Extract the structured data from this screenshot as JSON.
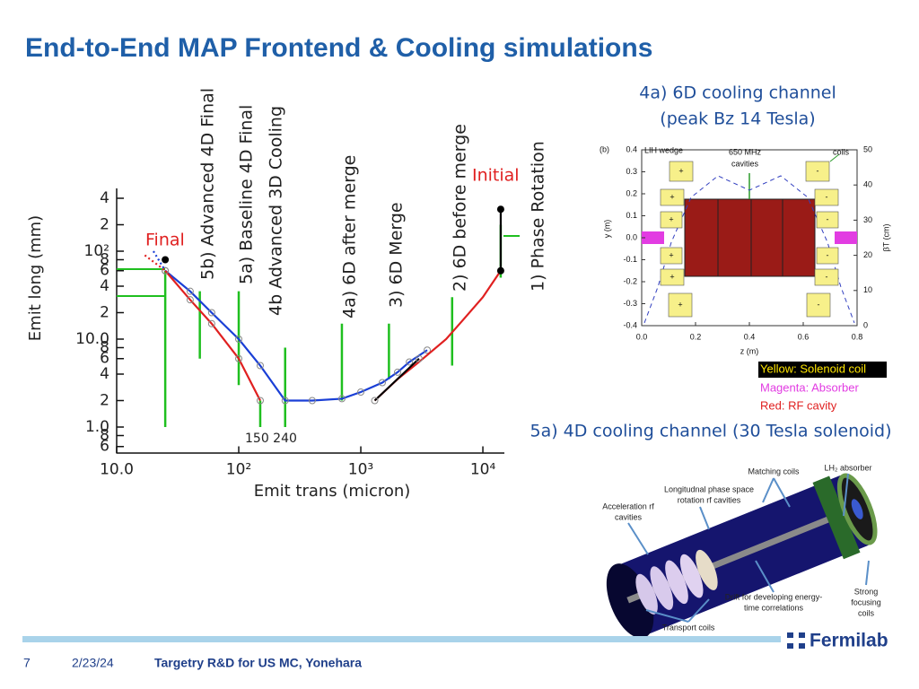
{
  "title": "End-to-End MAP Frontend & Cooling simulations",
  "chart_data": {
    "type": "line",
    "xlabel": "Emit trans   (micron)",
    "ylabel": "Emit long (mm)",
    "log_x": true,
    "log_y": true,
    "xlim": [
      10,
      15000
    ],
    "xticks": [
      {
        "value": 10,
        "label": "10.0"
      },
      {
        "value": 100,
        "label": "10²"
      },
      {
        "value": 1000,
        "label": "10³"
      },
      {
        "value": 10000,
        "label": "10⁴"
      }
    ],
    "ylim": [
      0.5,
      500
    ],
    "yticks": [
      {
        "value": 400,
        "label": "4"
      },
      {
        "value": 200,
        "label": "2"
      },
      {
        "value": 100,
        "label": "10²"
      },
      {
        "value": 80,
        "label": "8"
      },
      {
        "value": 60,
        "label": "6"
      },
      {
        "value": 40,
        "label": "4"
      },
      {
        "value": 20,
        "label": "2"
      },
      {
        "value": 10,
        "label": "10.0"
      },
      8,
      6,
      4,
      2,
      {
        "value": 1,
        "label": "1.0"
      },
      {
        "value": 0.8,
        "label": "8"
      },
      {
        "value": 0.6,
        "label": "6"
      }
    ],
    "series": [
      {
        "color": "#1a3fd6",
        "x": [
          25,
          40,
          60,
          100,
          150,
          240,
          400,
          700,
          1000,
          1500,
          2000,
          2500,
          3500
        ],
        "values": [
          60,
          35,
          20,
          10,
          5,
          2,
          2,
          2.1,
          2.5,
          3.2,
          4.2,
          5.5,
          7.5
        ],
        "markers": "open"
      },
      {
        "color": "#e02020",
        "x": [
          25,
          40,
          60,
          100,
          150
        ],
        "values": [
          60,
          28,
          15,
          6,
          2
        ],
        "markers": "open"
      },
      {
        "color": "#e02020",
        "x": [
          1300,
          2000,
          3000,
          5000,
          7000,
          10000,
          14000
        ],
        "values": [
          2,
          3.5,
          5.5,
          10,
          17,
          30,
          60
        ]
      },
      {
        "color": "#1a3fd6",
        "x": [
          20,
          25
        ],
        "values": [
          100,
          60
        ],
        "dash": true
      },
      {
        "color": "#e02020",
        "x": [
          17,
          25
        ],
        "values": [
          90,
          60
        ],
        "dash": true
      },
      {
        "color": "#000000",
        "x": [
          1300,
          3000
        ],
        "values": [
          2,
          6
        ],
        "markers": "open"
      },
      {
        "color": "#000000",
        "x": [
          14000,
          14000
        ],
        "values": [
          60,
          300
        ],
        "markers": "filled"
      },
      {
        "color": "#000000",
        "x": [
          25
        ],
        "values": [
          80
        ],
        "markers": "filled"
      }
    ],
    "stage_color": "#1fbf1f",
    "stages": [
      {
        "label": "1) Phase Rotation",
        "x": 14000,
        "y": [
          50,
          200
        ]
      },
      {
        "label": "2) 6D before merge",
        "x": 5600,
        "y": [
          5,
          30
        ]
      },
      {
        "label": "3) 6D Merge",
        "x": 1700,
        "y": [
          3.5,
          15
        ]
      },
      {
        "label": "4a) 6D after merge",
        "x": 700,
        "y": [
          2,
          15
        ]
      },
      {
        "label": "4b Advanced 3D Cooling",
        "x": 240,
        "y": [
          1,
          8
        ]
      },
      {
        "label": "5a) Baseline 4D Final",
        "x": 100,
        "y": [
          3,
          35
        ]
      },
      {
        "label": "5b) Advanced 4D Final",
        "x": 48,
        "y": [
          6,
          35
        ]
      },
      {
        "x": 150,
        "y": [
          1,
          2
        ]
      },
      {
        "x": 25,
        "y": [
          1,
          60
        ]
      }
    ],
    "annotations": {
      "final": "Final",
      "initial": "Initial",
      "trans_values": "150 240"
    }
  },
  "panel_4a": {
    "heading": [
      "4a) 6D cooling channel",
      "(peak Bz 14 Tesla)"
    ],
    "plot": {
      "tag": "(b)",
      "wedge": "LIH wedge",
      "cavities": [
        "650 MHz",
        "cavities"
      ],
      "coils": "coils",
      "y_ticks": [
        "0.4",
        "0.3",
        "0.2",
        "0.1",
        "0.0",
        "-0.1",
        "-0.2",
        "-0.3",
        "-0.4"
      ],
      "x_ticks": [
        "0.0",
        "0.2",
        "0.4",
        "0.6",
        "0.8"
      ],
      "right_ticks": [
        "50",
        "40",
        "30",
        "20",
        "10",
        "0"
      ],
      "y_label": "y (m)",
      "x_label": "z (m)",
      "right_label": "βT (cm)",
      "coil_plus": "+",
      "coil_minus": "-"
    },
    "legend": [
      "Yellow: Solenoid coil",
      "Magenta: Absorber",
      "Red: RF cavity"
    ]
  },
  "panel_5a": {
    "heading": "5a) 4D cooling channel (30 Tesla solenoid)",
    "labels": {
      "matching": [
        "Matching coils"
      ],
      "absorber": [
        "LH₂ absorber"
      ],
      "rotation": [
        "Longitudnal phase space",
        "rotation rf cavities"
      ],
      "acceleration": [
        "Acceleration rf",
        "cavities"
      ],
      "drift": [
        "Drift for developing energy-",
        "time correlations"
      ],
      "focusing": [
        "Strong",
        "focusing",
        "coils"
      ],
      "transport": [
        "Transport coils"
      ]
    }
  },
  "footer": {
    "page": "7",
    "date": "2/23/24",
    "text": "Targetry R&D for US MC, Yonehara",
    "logo": "Fermilab"
  }
}
